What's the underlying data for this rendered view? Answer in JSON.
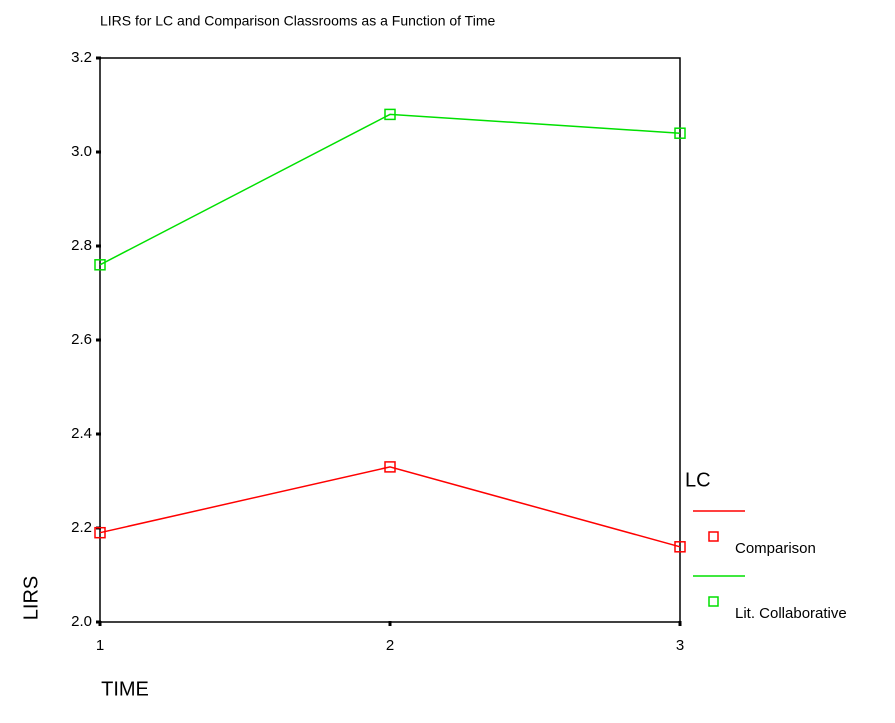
{
  "chart_data": {
    "type": "line",
    "title": "LIRS for LC and Comparison Classrooms as a Function of Time",
    "x_label": "TIME",
    "y_label": "LIRS",
    "x": [
      1,
      2,
      3
    ],
    "xlim": [
      1,
      3
    ],
    "xticks": [
      1,
      2,
      3
    ],
    "ylim": [
      2.0,
      3.2
    ],
    "yticks": [
      {
        "value": 2.0,
        "label": "2.0"
      },
      2.2,
      2.4,
      2.6,
      2.8,
      {
        "value": 3.0,
        "label": "3.0"
      },
      3.2
    ],
    "legend_title": "LC",
    "legend": "right",
    "series": [
      {
        "name": "Comparison",
        "color": "#ff0000",
        "values": [
          2.19,
          2.33,
          2.16
        ]
      },
      {
        "name": "Lit. Collaborative",
        "color": "#00e000",
        "values": [
          2.76,
          3.08,
          3.04
        ]
      }
    ]
  }
}
